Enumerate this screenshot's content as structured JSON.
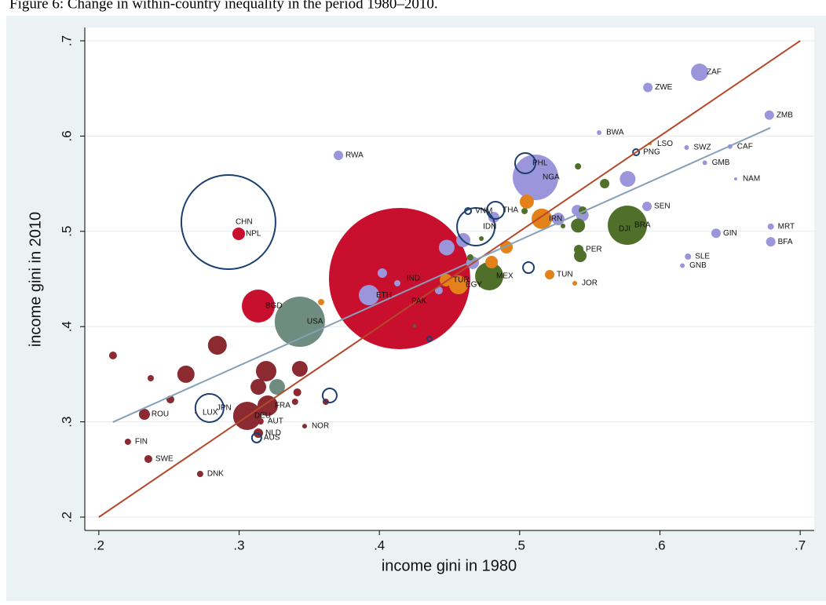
{
  "caption": "Figure 6: Change in within-country inequality in the period 1980–2010.",
  "chart_data": {
    "type": "scatter",
    "x_label": "income gini in 1980",
    "y_label": "income gini in 2010",
    "xlim": [
      0.19,
      0.71
    ],
    "ylim": [
      0.186,
      0.714
    ],
    "xticks": [
      {
        "value": 0.2,
        "label": ".2"
      },
      {
        "value": 0.3,
        "label": ".3"
      },
      {
        "value": 0.4,
        "label": ".4"
      },
      {
        "value": 0.5,
        "label": ".5"
      },
      {
        "value": 0.6,
        "label": ".6"
      },
      {
        "value": 0.7,
        "label": ".7"
      }
    ],
    "yticks": [
      {
        "value": 0.2,
        "label": ".2"
      },
      {
        "value": 0.3,
        "label": ".3"
      },
      {
        "value": 0.4,
        "label": ".4"
      },
      {
        "value": 0.5,
        "label": ".5"
      },
      {
        "value": 0.6,
        "label": ".6"
      },
      {
        "value": 0.7,
        "label": ".7"
      }
    ],
    "grid": true,
    "lines": [
      {
        "color": "#b5482a",
        "x": [
          0.2,
          0.7
        ],
        "y": [
          0.2,
          0.7
        ]
      },
      {
        "color": "#86a0b8",
        "x": [
          0.21,
          0.6787
        ],
        "y": [
          0.2997,
          0.6086
        ]
      }
    ],
    "series": [
      {
        "color": "#c8102e",
        "fill": "solid",
        "x": [
          0.4144,
          0.4178,
          0.2997,
          0.3137
        ],
        "y": [
          0.4504,
          0.4265,
          0.4974,
          0.4216
        ],
        "sizes": [
          8100,
          25,
          64,
          441
        ],
        "labels": [
          "IND",
          "PAK",
          "NPL",
          "BGD"
        ]
      },
      {
        "color": "#9b96db",
        "fill": "solid",
        "x": [
          0.6283,
          0.5914,
          0.678,
          0.5567,
          0.3708,
          0.619,
          0.65,
          0.632,
          0.654,
          0.5113,
          0.5908,
          0.64,
          0.679,
          0.679,
          0.62,
          0.616,
          0.3926,
          0.577,
          0.5275,
          0.541,
          0.5447,
          0.4816,
          0.4598,
          0.448,
          0.4665,
          0.4021,
          0.4128,
          0.4424
        ],
        "y": [
          0.667,
          0.651,
          0.622,
          0.6036,
          0.5797,
          0.588,
          0.589,
          0.572,
          0.555,
          0.5567,
          0.5262,
          0.498,
          0.505,
          0.489,
          0.4735,
          0.464,
          0.433,
          0.555,
          0.513,
          0.522,
          0.517,
          0.5147,
          0.4908,
          0.483,
          0.467,
          0.4562,
          0.4455,
          0.438
        ],
        "sizes": [
          121,
          36,
          36,
          9,
          36,
          9,
          9,
          9,
          4,
          841,
          36,
          36,
          16,
          36,
          16,
          9,
          169,
          100,
          64,
          49,
          64,
          49,
          81,
          100,
          64,
          36,
          16,
          25
        ],
        "labels": [
          "ZAF",
          "ZWE",
          "ZMB",
          "BWA",
          "RWA",
          "SWZ",
          "CAF",
          "GMB",
          "NAM",
          "NGA",
          "SEN",
          "GIN",
          "MRT",
          "BFA",
          "SLE",
          "GNB",
          "ETH",
          null,
          null,
          null,
          null,
          null,
          null,
          null,
          null,
          null,
          null,
          null
        ]
      },
      {
        "color": "#8b2a30",
        "fill": "solid",
        "x": [
          0.2101,
          0.237,
          0.2621,
          0.251,
          0.2325,
          0.2845,
          0.3193,
          0.3433,
          0.3137,
          0.3415,
          0.3399,
          0.3618,
          0.3204,
          0.3058,
          0.3153,
          0.3137,
          0.3467,
          0.2207,
          0.2353,
          0.2722,
          0.2689
        ],
        "y": [
          0.3697,
          0.3458,
          0.35,
          0.3235,
          0.3079,
          0.3804,
          0.3532,
          0.3557,
          0.3367,
          0.331,
          0.3211,
          0.3211,
          0.317,
          0.3063,
          0.3005,
          0.2881,
          0.2955,
          0.2791,
          0.261,
          0.2453,
          0.3096
        ],
        "sizes": [
          25,
          16,
          121,
          25,
          49,
          144,
          169,
          100,
          100,
          25,
          16,
          16,
          169,
          324,
          16,
          36,
          9,
          16,
          25,
          16,
          1
        ],
        "labels": [
          null,
          null,
          null,
          null,
          "ROU",
          null,
          null,
          null,
          null,
          null,
          null,
          null,
          "FRA",
          "DEU",
          "AUT",
          "NLD",
          "NOR",
          "FIN",
          "SWE",
          "DNK",
          "LUX"
        ]
      },
      {
        "color": "#1b3f6e",
        "fill": "hollow",
        "x": [
          0.2924,
          0.2789,
          0.3125,
          0.3646,
          0.4828,
          0.4688,
          0.4632,
          0.504,
          0.5063,
          0.4357,
          0.583
        ],
        "y": [
          0.5097,
          0.3145,
          0.2832,
          0.3277,
          0.5221,
          0.5048,
          0.5213,
          0.5715,
          0.4619,
          0.387,
          0.583
        ],
        "sizes": [
          3600,
          324,
          36,
          81,
          121,
          576,
          16,
          169,
          49,
          9,
          16
        ],
        "labels": [
          "CHN",
          "JPN",
          "AUS",
          null,
          "THA",
          "IDN",
          "VNM",
          "PHL",
          null,
          null,
          "PNG"
        ]
      },
      {
        "color": "#6e8c80",
        "fill": "solid",
        "x": [
          0.3433,
          0.3271
        ],
        "y": [
          0.4051,
          0.3367
        ],
        "sizes": [
          1024,
          100
        ],
        "labels": [
          "USA",
          null
        ]
      },
      {
        "color": "#4f6f2a",
        "fill": "solid",
        "x": [
          0.5768,
          0.5656,
          0.4783,
          0.5421,
          0.5432,
          0.5416,
          0.5606,
          0.5449,
          0.5416,
          0.5309,
          0.5035,
          0.4648,
          0.4251,
          0.4727
        ],
        "y": [
          0.5064,
          0.5023,
          0.4529,
          0.4809,
          0.4743,
          0.5061,
          0.5501,
          0.5221,
          0.5682,
          0.5056,
          0.5213,
          0.4727,
          0.401,
          0.4924
        ],
        "sizes": [
          625,
          1,
          324,
          36,
          64,
          81,
          36,
          25,
          16,
          9,
          16,
          16,
          4,
          9
        ],
        "labels": [
          "BRA",
          "DJI",
          "MEX",
          "PER",
          null,
          null,
          null,
          null,
          null,
          null,
          null,
          null,
          null,
          null
        ]
      },
      {
        "color": "#e3821a",
        "fill": "solid",
        "x": [
          0.4564,
          0.4475,
          0.5158,
          0.5051,
          0.4906,
          0.48,
          0.5214,
          0.5393,
          0.3585,
          0.593
        ],
        "y": [
          0.4438,
          0.4488,
          0.5132,
          0.5311,
          0.4834,
          0.4677,
          0.4545,
          0.4455,
          0.4257,
          0.592
        ],
        "sizes": [
          144,
          64,
          169,
          81,
          64,
          64,
          36,
          9,
          16,
          4
        ],
        "labels": [
          "EGY",
          "TUR",
          "IRN",
          null,
          null,
          null,
          "TUN",
          "JOR",
          null,
          "LSO"
        ]
      }
    ]
  }
}
